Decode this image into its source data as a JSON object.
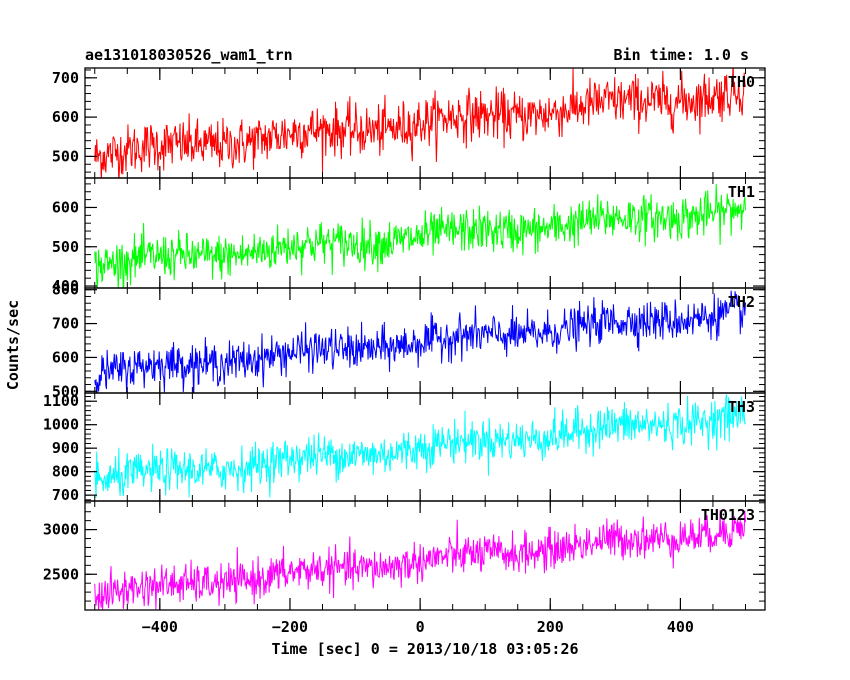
{
  "chart_data": {
    "type": "line",
    "title": "ae131018030526_wam1_trn",
    "subtitle": "Bin time: 1.0 s",
    "xlabel": "Time [sec] 0 = 2013/10/18 03:05:26",
    "ylabel": "Counts/sec",
    "xlim": [
      -515,
      530
    ],
    "x_ticks": [
      -400,
      -200,
      0,
      200,
      400
    ],
    "x_tick_labels": [
      "−400",
      "−200",
      "0",
      "200",
      "400"
    ],
    "x_range_data": [
      -500,
      500
    ],
    "grid": false,
    "panels": [
      {
        "name": "TH0",
        "color": "#ff0000",
        "ylim": [
          445,
          725
        ],
        "y_ticks": [
          500,
          600,
          700
        ],
        "y_tick_labels": [
          "500",
          "600",
          "700"
        ],
        "start": 505,
        "end": 665,
        "noise": 32
      },
      {
        "name": "TH1",
        "color": "#00ff00",
        "ylim": [
          395,
          675
        ],
        "y_ticks": [
          400,
          500,
          600
        ],
        "y_tick_labels": [
          "400",
          "500",
          "600"
        ],
        "start": 455,
        "end": 595,
        "noise": 28
      },
      {
        "name": "TH2",
        "color": "#0000ff",
        "ylim": [
          495,
          805
        ],
        "y_ticks": [
          500,
          600,
          700,
          800
        ],
        "y_tick_labels": [
          "500",
          "600",
          "700",
          "800"
        ],
        "start": 555,
        "end": 735,
        "noise": 30
      },
      {
        "name": "TH3",
        "color": "#00ffff",
        "ylim": [
          675,
          1135
        ],
        "y_ticks": [
          700,
          800,
          900,
          1000,
          1100
        ],
        "y_tick_labels": [
          "700",
          "800",
          "900",
          "1000",
          "1100"
        ],
        "start": 765,
        "end": 1040,
        "noise": 45
      },
      {
        "name": "TH0123",
        "color": "#ff00ff",
        "ylim": [
          2100,
          3320
        ],
        "y_ticks": [
          2500,
          3000
        ],
        "y_tick_labels": [
          "2500",
          "3000"
        ],
        "start": 2280,
        "end": 3010,
        "noise": 110
      }
    ]
  }
}
